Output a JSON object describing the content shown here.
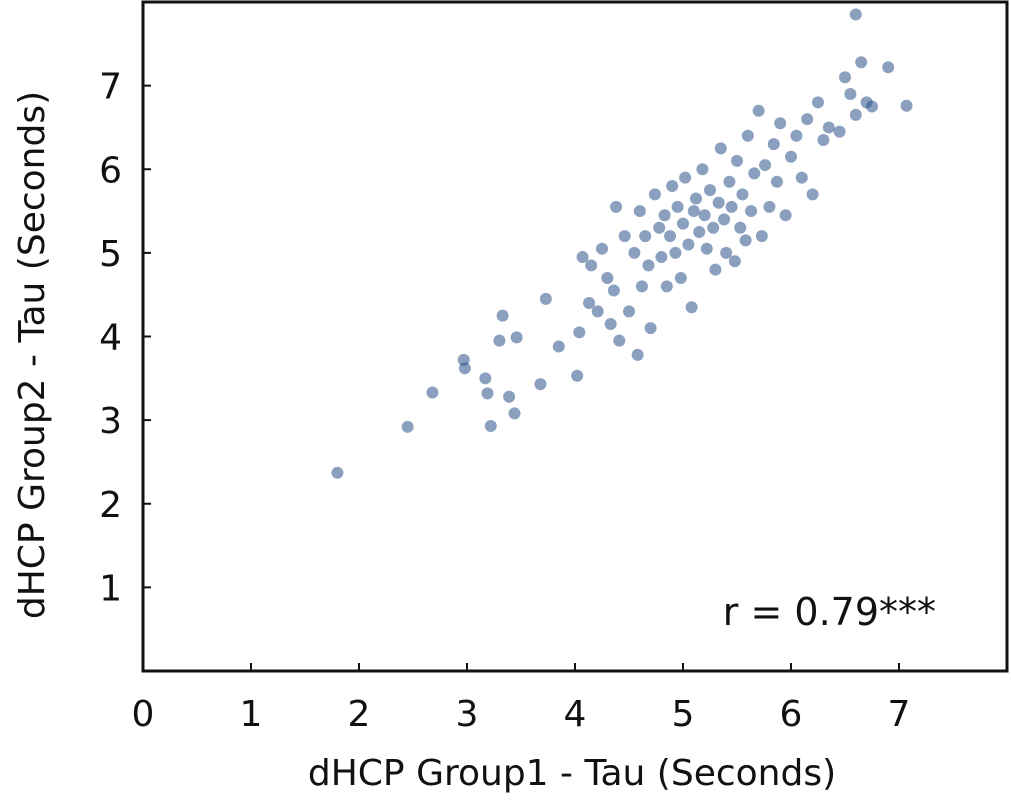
{
  "chart_data": {
    "type": "scatter",
    "xlabel": "dHCP Group1 - Tau (Seconds)",
    "ylabel": "dHCP Group2 - Tau (Seconds)",
    "xlim": [
      0,
      8
    ],
    "ylim": [
      0,
      8
    ],
    "xticks": [
      "0",
      "1",
      "2",
      "3",
      "4",
      "5",
      "6",
      "7"
    ],
    "yticks": [
      "1",
      "2",
      "3",
      "4",
      "5",
      "6",
      "7"
    ],
    "annotation": "r = 0.79***",
    "grid": false,
    "marker_color": "#2B5289",
    "series": [
      {
        "x": [
          1.8,
          2.45,
          2.68,
          2.97,
          2.98,
          3.17,
          3.19,
          3.22,
          3.3,
          3.33,
          3.39,
          3.44,
          3.46,
          3.68,
          3.73,
          3.85,
          4.02,
          4.04,
          4.07,
          4.13,
          4.15,
          4.21,
          4.25,
          4.3,
          4.33,
          4.36,
          4.38,
          4.41,
          4.46,
          4.5,
          4.55,
          4.58,
          4.6,
          4.62,
          4.65,
          4.68,
          4.7,
          4.74,
          4.78,
          4.8,
          4.83,
          4.85,
          4.88,
          4.9,
          4.93,
          4.95,
          4.98,
          5.0,
          5.02,
          5.05,
          5.08,
          5.1,
          5.12,
          5.15,
          5.18,
          5.2,
          5.22,
          5.25,
          5.28,
          5.3,
          5.33,
          5.35,
          5.38,
          5.4,
          5.43,
          5.45,
          5.48,
          5.5,
          5.53,
          5.55,
          5.58,
          5.6,
          5.63,
          5.66,
          5.7,
          5.73,
          5.76,
          5.8,
          5.84,
          5.87,
          5.9,
          5.95,
          6.0,
          6.05,
          6.1,
          6.15,
          6.2,
          6.25,
          6.3,
          6.35,
          6.5,
          6.55,
          6.6,
          6.65,
          6.7,
          6.75,
          6.9,
          7.07,
          6.6,
          6.45
        ],
        "y": [
          2.37,
          2.92,
          3.33,
          3.72,
          3.62,
          3.5,
          3.32,
          2.93,
          3.95,
          4.25,
          3.28,
          3.08,
          3.99,
          3.43,
          4.45,
          3.88,
          3.53,
          4.05,
          4.95,
          4.4,
          4.85,
          4.3,
          5.05,
          4.7,
          4.15,
          4.55,
          5.55,
          3.95,
          5.2,
          4.3,
          5.0,
          3.78,
          5.5,
          4.6,
          5.2,
          4.85,
          4.1,
          5.7,
          5.3,
          4.95,
          5.45,
          4.6,
          5.2,
          5.8,
          5.0,
          5.55,
          4.7,
          5.35,
          5.9,
          5.1,
          4.35,
          5.5,
          5.65,
          5.25,
          6.0,
          5.45,
          5.05,
          5.75,
          5.3,
          4.8,
          5.6,
          6.25,
          5.4,
          5.0,
          5.85,
          5.55,
          4.9,
          6.1,
          5.3,
          5.7,
          5.15,
          6.4,
          5.5,
          5.95,
          6.7,
          5.2,
          6.05,
          5.55,
          6.3,
          5.85,
          6.55,
          5.45,
          6.15,
          6.4,
          5.9,
          6.6,
          5.7,
          6.8,
          6.35,
          6.5,
          7.1,
          6.9,
          6.65,
          7.28,
          6.8,
          6.75,
          7.22,
          6.76,
          7.85,
          6.45
        ]
      }
    ]
  }
}
